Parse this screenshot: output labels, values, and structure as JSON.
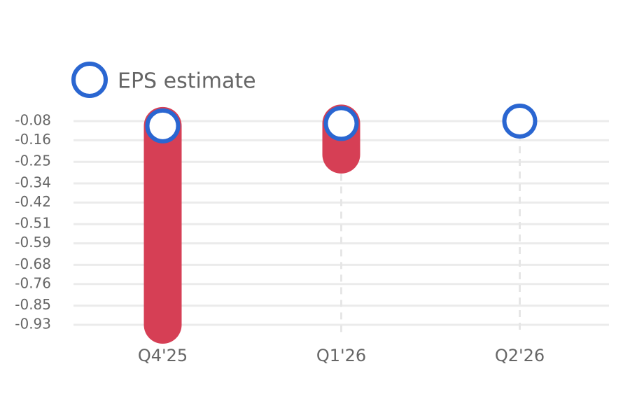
{
  "chart_data": {
    "type": "eps",
    "categories": [
      "Q4'25",
      "Q1'26",
      "Q2'26"
    ],
    "series": [
      {
        "name": "EPS estimate",
        "color": "#2a66d1",
        "values": [
          -0.1,
          -0.09,
          -0.08
        ]
      },
      {
        "color": "#d63f55",
        "values": [
          -0.93,
          -0.22,
          null
        ]
      }
    ],
    "ylim": [
      -0.965,
      -0.045
    ],
    "yticks": [
      -0.08,
      -0.16,
      -0.25,
      -0.34,
      -0.42,
      -0.51,
      -0.59,
      -0.68,
      -0.76,
      -0.85,
      -0.93
    ],
    "grid": true
  }
}
